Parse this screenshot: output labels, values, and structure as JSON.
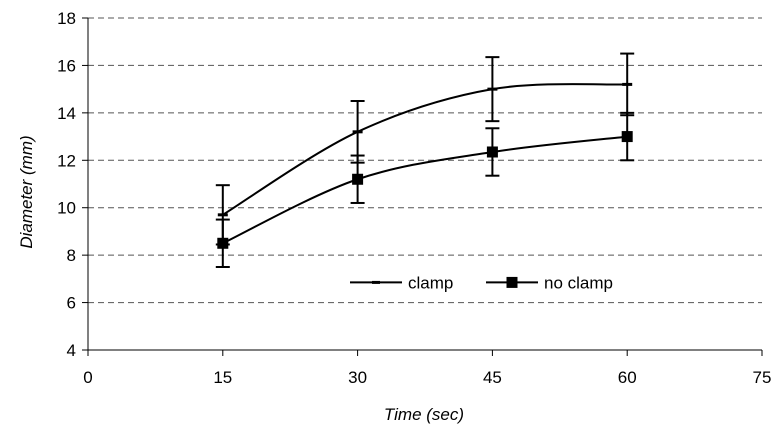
{
  "chart_data": {
    "type": "line",
    "xlabel": "Time (sec)",
    "ylabel": "Diameter (mm)",
    "xlim": [
      0,
      75
    ],
    "ylim": [
      4,
      18
    ],
    "x_ticks": [
      "0",
      "15",
      "30",
      "45",
      "60",
      "75"
    ],
    "y_ticks": [
      "4",
      "6",
      "8",
      "10",
      "12",
      "14",
      "16",
      "18"
    ],
    "grid": "horizontal dashed",
    "legend_position": "inside lower-right",
    "series": [
      {
        "name": "clamp",
        "marker": "dash",
        "color": "#000000",
        "x": [
          15,
          30,
          45,
          60
        ],
        "y": [
          9.7,
          13.2,
          15.0,
          15.2
        ],
        "error": [
          1.25,
          1.3,
          1.35,
          1.3
        ]
      },
      {
        "name": "no clamp",
        "marker": "square",
        "color": "#000000",
        "x": [
          15,
          30,
          45,
          60
        ],
        "y": [
          8.5,
          11.2,
          12.35,
          13.0
        ],
        "error": [
          1.0,
          1.0,
          1.0,
          1.0
        ]
      }
    ]
  }
}
